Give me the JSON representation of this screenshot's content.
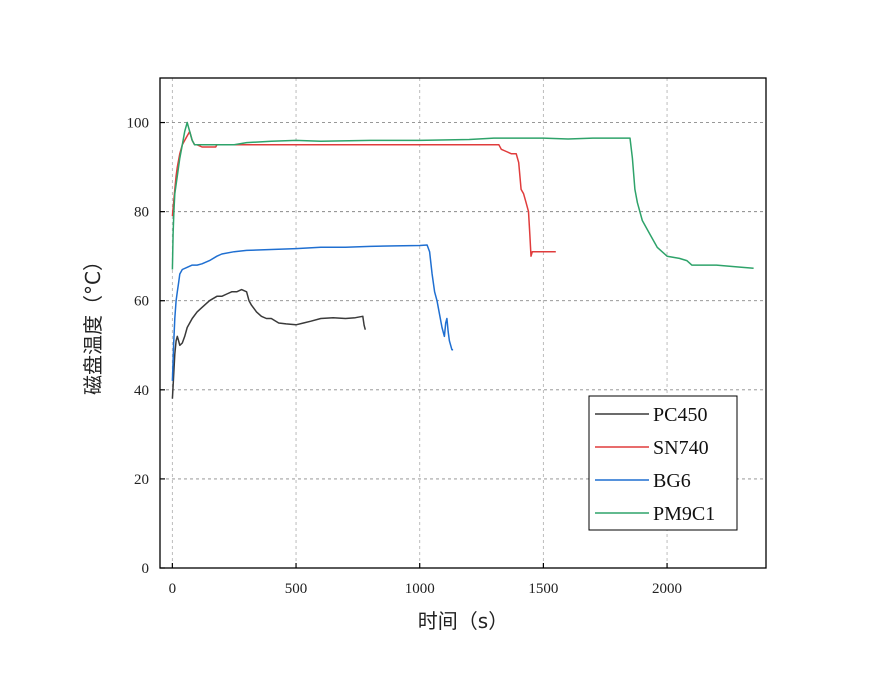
{
  "chart_data": {
    "type": "line",
    "xlabel": "时间（s）",
    "ylabel": "磁盘温度（°C）",
    "xlim": [
      -50,
      2400
    ],
    "ylim": [
      0,
      110
    ],
    "xticks": [
      0,
      500,
      1000,
      1500,
      2000
    ],
    "yticks": [
      0,
      20,
      40,
      60,
      80,
      100
    ],
    "grid": true,
    "legend_position": "bottom-right",
    "series": [
      {
        "name": "PC450",
        "color": "#3a3a3a",
        "points": [
          [
            0,
            38
          ],
          [
            5,
            43
          ],
          [
            10,
            48
          ],
          [
            15,
            51
          ],
          [
            20,
            52
          ],
          [
            25,
            51
          ],
          [
            30,
            50
          ],
          [
            40,
            50.5
          ],
          [
            50,
            52
          ],
          [
            60,
            54
          ],
          [
            80,
            56
          ],
          [
            100,
            57.5
          ],
          [
            120,
            58.5
          ],
          [
            150,
            60
          ],
          [
            180,
            61
          ],
          [
            200,
            61
          ],
          [
            220,
            61.5
          ],
          [
            240,
            62
          ],
          [
            260,
            62
          ],
          [
            280,
            62.5
          ],
          [
            300,
            62
          ],
          [
            310,
            60
          ],
          [
            320,
            59
          ],
          [
            340,
            57.5
          ],
          [
            360,
            56.5
          ],
          [
            380,
            56
          ],
          [
            400,
            56
          ],
          [
            430,
            55
          ],
          [
            460,
            54.8
          ],
          [
            500,
            54.6
          ],
          [
            530,
            55
          ],
          [
            560,
            55.4
          ],
          [
            600,
            56
          ],
          [
            650,
            56.2
          ],
          [
            700,
            56
          ],
          [
            740,
            56.2
          ],
          [
            770,
            56.5
          ],
          [
            775,
            54.5
          ],
          [
            780,
            53.5
          ]
        ]
      },
      {
        "name": "SN740",
        "color": "#e03c3c",
        "points": [
          [
            0,
            79
          ],
          [
            5,
            82
          ],
          [
            10,
            85
          ],
          [
            15,
            88
          ],
          [
            20,
            90
          ],
          [
            30,
            93
          ],
          [
            40,
            95
          ],
          [
            50,
            96
          ],
          [
            60,
            97
          ],
          [
            70,
            98
          ],
          [
            80,
            96
          ],
          [
            90,
            95
          ],
          [
            100,
            95
          ],
          [
            120,
            94.5
          ],
          [
            150,
            94.5
          ],
          [
            175,
            94.5
          ],
          [
            180,
            95
          ],
          [
            300,
            95
          ],
          [
            500,
            95
          ],
          [
            800,
            95
          ],
          [
            1000,
            95
          ],
          [
            1200,
            95
          ],
          [
            1320,
            95
          ],
          [
            1330,
            94
          ],
          [
            1350,
            93.5
          ],
          [
            1370,
            93
          ],
          [
            1390,
            93
          ],
          [
            1400,
            91
          ],
          [
            1410,
            85
          ],
          [
            1420,
            84
          ],
          [
            1430,
            82
          ],
          [
            1440,
            80
          ],
          [
            1445,
            75
          ],
          [
            1450,
            70
          ],
          [
            1455,
            71
          ],
          [
            1500,
            71
          ],
          [
            1550,
            71
          ]
        ]
      },
      {
        "name": "BG6",
        "color": "#1f6fd1",
        "points": [
          [
            0,
            42
          ],
          [
            5,
            50
          ],
          [
            10,
            56
          ],
          [
            15,
            60
          ],
          [
            20,
            62
          ],
          [
            25,
            64
          ],
          [
            30,
            66
          ],
          [
            40,
            67
          ],
          [
            60,
            67.5
          ],
          [
            80,
            68
          ],
          [
            100,
            68
          ],
          [
            120,
            68.3
          ],
          [
            150,
            69
          ],
          [
            180,
            70
          ],
          [
            200,
            70.5
          ],
          [
            250,
            71
          ],
          [
            300,
            71.3
          ],
          [
            400,
            71.5
          ],
          [
            500,
            71.7
          ],
          [
            600,
            72
          ],
          [
            700,
            72
          ],
          [
            800,
            72.2
          ],
          [
            900,
            72.3
          ],
          [
            1000,
            72.4
          ],
          [
            1030,
            72.5
          ],
          [
            1040,
            71
          ],
          [
            1050,
            66
          ],
          [
            1060,
            62
          ],
          [
            1070,
            60
          ],
          [
            1080,
            57
          ],
          [
            1090,
            54
          ],
          [
            1100,
            52
          ],
          [
            1105,
            55
          ],
          [
            1110,
            56
          ],
          [
            1115,
            53
          ],
          [
            1120,
            51
          ],
          [
            1130,
            49
          ],
          [
            1135,
            49
          ]
        ]
      },
      {
        "name": "PM9C1",
        "color": "#2ea36a",
        "points": [
          [
            0,
            67
          ],
          [
            3,
            75
          ],
          [
            6,
            80
          ],
          [
            10,
            84
          ],
          [
            20,
            88
          ],
          [
            30,
            92
          ],
          [
            40,
            95
          ],
          [
            50,
            98
          ],
          [
            60,
            100
          ],
          [
            70,
            98
          ],
          [
            80,
            96
          ],
          [
            90,
            95
          ],
          [
            150,
            95
          ],
          [
            250,
            95
          ],
          [
            300,
            95.5
          ],
          [
            400,
            95.8
          ],
          [
            500,
            96
          ],
          [
            600,
            95.8
          ],
          [
            800,
            96
          ],
          [
            1000,
            96
          ],
          [
            1200,
            96.2
          ],
          [
            1300,
            96.5
          ],
          [
            1400,
            96.5
          ],
          [
            1500,
            96.5
          ],
          [
            1600,
            96.3
          ],
          [
            1700,
            96.5
          ],
          [
            1800,
            96.5
          ],
          [
            1850,
            96.5
          ],
          [
            1860,
            92
          ],
          [
            1870,
            85
          ],
          [
            1880,
            82
          ],
          [
            1900,
            78
          ],
          [
            1930,
            75
          ],
          [
            1960,
            72
          ],
          [
            2000,
            70
          ],
          [
            2050,
            69.5
          ],
          [
            2080,
            69
          ],
          [
            2100,
            68
          ],
          [
            2200,
            68
          ],
          [
            2300,
            67.5
          ],
          [
            2350,
            67.3
          ]
        ]
      }
    ]
  }
}
